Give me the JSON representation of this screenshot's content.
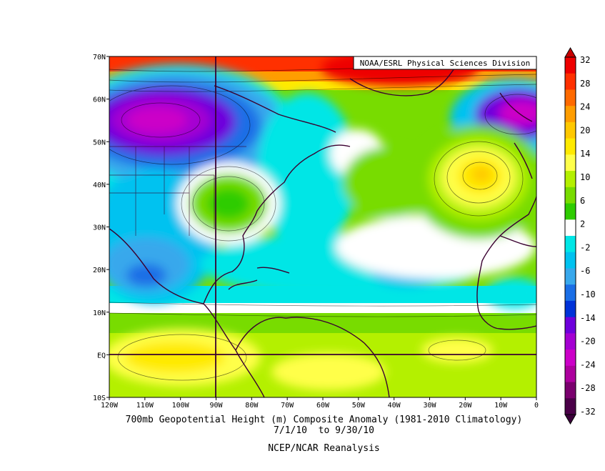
{
  "credit": "NOAA/ESRL Physical Sciences Division",
  "caption": {
    "title": "700mb Geopotential Height (m) Composite Anomaly (1981-2010 Climatology)",
    "dates": "7/1/10  to 9/30/10",
    "source": "NCEP/NCAR Reanalysis"
  },
  "chart_data": {
    "type": "heatmap",
    "title": "700mb Geopotential Height (m) Composite Anomaly (1981-2010 Climatology)",
    "units": "m",
    "lon_range": [
      -120,
      0
    ],
    "lat_range": [
      -10,
      70
    ],
    "lon_ticks": [
      "120W",
      "110W",
      "100W",
      "90W",
      "80W",
      "70W",
      "60W",
      "50W",
      "40W",
      "30W",
      "20W",
      "10W",
      "0"
    ],
    "lat_ticks": [
      "10S",
      "EQ",
      "10N",
      "20N",
      "30N",
      "40N",
      "50N",
      "60N",
      "70N"
    ],
    "reference_lines": [
      {
        "type": "meridian",
        "lon": -90
      },
      {
        "type": "parallel",
        "lat": 0
      }
    ],
    "colorbar": {
      "ticks": [
        32,
        28,
        24,
        20,
        14,
        10,
        6,
        2,
        -2,
        -6,
        -10,
        -14,
        -20,
        -24,
        -28,
        -32
      ],
      "colors": [
        "#ee0000",
        "#ff3000",
        "#ff6a00",
        "#ff9d00",
        "#ffc800",
        "#ffea00",
        "#ffff4a",
        "#b4f000",
        "#78dc00",
        "#2ecc00",
        "#ffffff",
        "#00e6e6",
        "#00c2f0",
        "#38a8ec",
        "#1a6ee6",
        "#0032d8",
        "#6e00dc",
        "#a400d2",
        "#cc00c8",
        "#ad009e",
        "#7a006e",
        "#4a0048"
      ]
    },
    "anomaly_centers": [
      {
        "region": "Western Canada",
        "lon": -105,
        "lat": 57,
        "value": -24
      },
      {
        "region": "Southeastern US",
        "lon": -82,
        "lat": 35,
        "value": 6
      },
      {
        "region": "Northeast Atlantic",
        "lon": -15,
        "lat": 42,
        "value": 16
      },
      {
        "region": "Northern Europe",
        "lon": -3,
        "lat": 56,
        "value": -22
      },
      {
        "region": "Greenland",
        "lon": -40,
        "lat": 68,
        "value": 30
      },
      {
        "region": "Mexico",
        "lon": -108,
        "lat": 19,
        "value": -8
      },
      {
        "region": "Central Atlantic",
        "lon": -35,
        "lat": 20,
        "value": -6
      },
      {
        "region": "Western Atlantic",
        "lon": -45,
        "lat": 40,
        "value": 4
      },
      {
        "region": "Eastern Pacific",
        "lon": -95,
        "lat": 0,
        "value": 9
      },
      {
        "region": "Tropical Atlantic",
        "lon": -20,
        "lat": 0,
        "value": 5
      }
    ]
  }
}
